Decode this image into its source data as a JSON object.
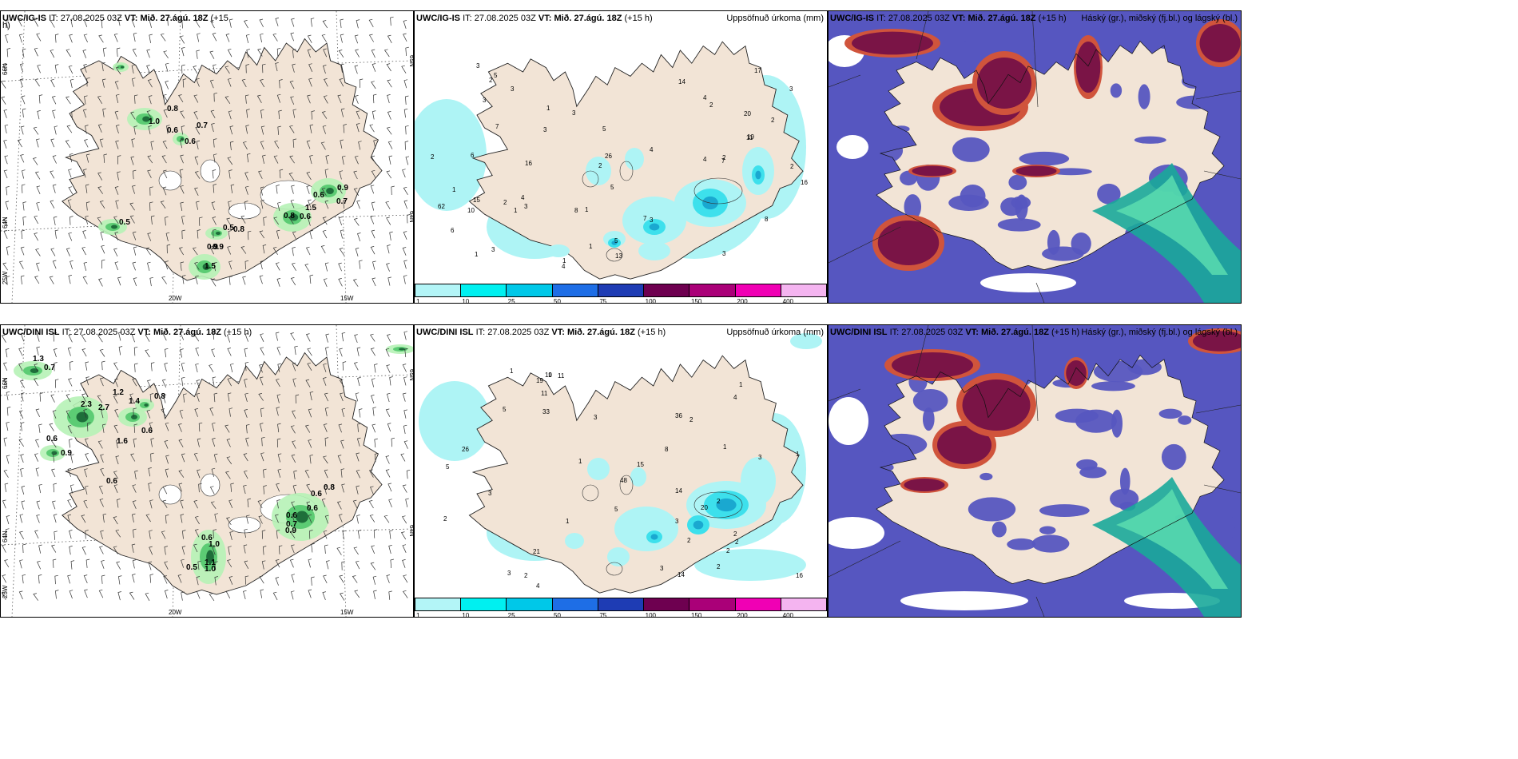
{
  "panels": [
    {
      "id": "ig-wind",
      "model": "UWC/IG-IS",
      "it_label": "IT:",
      "it_value": "27.08.2025 03Z",
      "vt_label": "VT:",
      "vt_value": "Mið. 27.ágú. 18Z",
      "lead": "(+15",
      "lead_wrap": "h)",
      "right_title": "",
      "axis": {
        "lon_left": "20W",
        "lon_right": "15W",
        "lat_top": "66N",
        "lat_mid": "64N",
        "lat_low": "25W",
        "lat_right_top": "65N",
        "lat_right_mid": "64N"
      },
      "values": [
        "0.8",
        "0.7",
        "1.0",
        "0.6",
        "0.6",
        "0.5",
        "0.8",
        "0.6",
        "0.9",
        "0.7",
        "1.5",
        "0.6",
        "0.5",
        "0.8",
        "0.9",
        "1.5",
        "0.9"
      ]
    },
    {
      "id": "ig-precip",
      "model": "UWC/IG-IS",
      "it_label": "IT:",
      "it_value": "27.08.2025 03Z",
      "vt_label": "VT:",
      "vt_value": "Mið. 27.ágú. 18Z",
      "lead": "(+15 h)",
      "right_title": "Uppsöfnuð úrkoma (mm)",
      "values": [
        "4",
        "3",
        "2",
        "5",
        "5",
        "3",
        "2",
        "2",
        "1",
        "2",
        "1",
        "3",
        "1",
        "2",
        "1",
        "3",
        "3",
        "5",
        "6",
        "4",
        "7",
        "3",
        "4",
        "7",
        "8",
        "8",
        "1",
        "7",
        "17",
        "20",
        "19",
        "13",
        "4",
        "4",
        "15",
        "3",
        "2",
        "1",
        "62",
        "26",
        "14",
        "11",
        "16",
        "16",
        "10",
        "6",
        "5",
        "3",
        "2",
        "2",
        "3",
        "3",
        "1"
      ]
    },
    {
      "id": "ig-cloud",
      "model": "UWC/IG-IS",
      "it_label": "IT:",
      "it_value": "27.08.2025 03Z",
      "vt_label": "VT:",
      "vt_value": "Mið. 27.ágú. 18Z",
      "lead": "(+15 h)",
      "right_title": "Háský (gr.), miðský (fj.bl.) og lágský (bl.)"
    },
    {
      "id": "dini-wind",
      "model": "UWC/DINI ISL",
      "it_label": "IT:",
      "it_value": "27.08.2025 03Z",
      "vt_label": "VT:",
      "vt_value": "Mið. 27.ágú. 18Z",
      "lead": "(+15 h)",
      "right_title": "",
      "axis": {
        "lon_left": "20W",
        "lon_right": "15W",
        "lat_top": "66N",
        "lat_mid": "64N",
        "lat_low": "25W",
        "lat_right_top": "65N",
        "lat_right_mid": "64N"
      },
      "values": [
        "1.3",
        "0.7",
        "0.6",
        "1.2",
        "1.4",
        "2.3",
        "2.7",
        "0.8",
        "0.6",
        "1.6",
        "0.6",
        "0.9",
        "0.6",
        "0.6",
        "0.8",
        "0.6",
        "0.9",
        "0.7",
        "0.6",
        "1.0",
        "0.5",
        "1.1",
        "1.0"
      ]
    },
    {
      "id": "dini-precip",
      "model": "UWC/DINI ISL",
      "it_label": "IT:",
      "it_value": "27.08.2025 03Z",
      "vt_label": "VT:",
      "vt_value": "Mið. 27.ágú. 18Z",
      "lead": "(+15 h)",
      "right_title": "Uppsöfnuð úrkoma (mm)",
      "values": [
        "3",
        "2",
        "1",
        "2",
        "5",
        "3",
        "2",
        "4",
        "8",
        "3",
        "1",
        "2",
        "5",
        "2",
        "1",
        "2",
        "1",
        "5",
        "2",
        "3",
        "3",
        "1",
        "2",
        "2",
        "20",
        "19",
        "21",
        "11",
        "10",
        "11",
        "48",
        "36",
        "26",
        "15",
        "14",
        "16",
        "4",
        "14",
        "33",
        "3",
        "1",
        "1"
      ]
    },
    {
      "id": "dini-cloud",
      "model": "UWC/DINI ISL",
      "it_label": "IT:",
      "it_value": "27.08.2025 03Z",
      "vt_label": "VT:",
      "vt_value": "Mið. 27.ágú. 18Z",
      "lead": "(+15 h)",
      "right_title": "Háský (gr.), miðský (fj.bl.) og lágský (bl.)"
    }
  ],
  "colorbar": {
    "ticks": [
      "1",
      "10",
      "25",
      "50",
      "75",
      "100",
      "150",
      "200",
      "400"
    ],
    "colors": [
      "#b3f5f7",
      "#00f0f0",
      "#00c8e8",
      "#1e6ee6",
      "#1e3cb4",
      "#6e0050",
      "#aa0078",
      "#f000b4",
      "#f4b4f0"
    ]
  },
  "colors": {
    "land": "#f2e4d6",
    "sea": "#ffffff",
    "precip_light": "#aef4f5",
    "precip_mid": "#3de0ec",
    "precip_high": "#1aa8d0",
    "wind_light": "#b6f2b6",
    "wind_mid": "#5ccc74",
    "wind_dark": "#1e6e3a",
    "cloud_high": "#7a1446",
    "cloud_high_edge": "#d0543c",
    "cloud_mid": "#5656c0",
    "cloud_low": "#1aa89a",
    "cloud_low_light": "#5ee0b0"
  }
}
